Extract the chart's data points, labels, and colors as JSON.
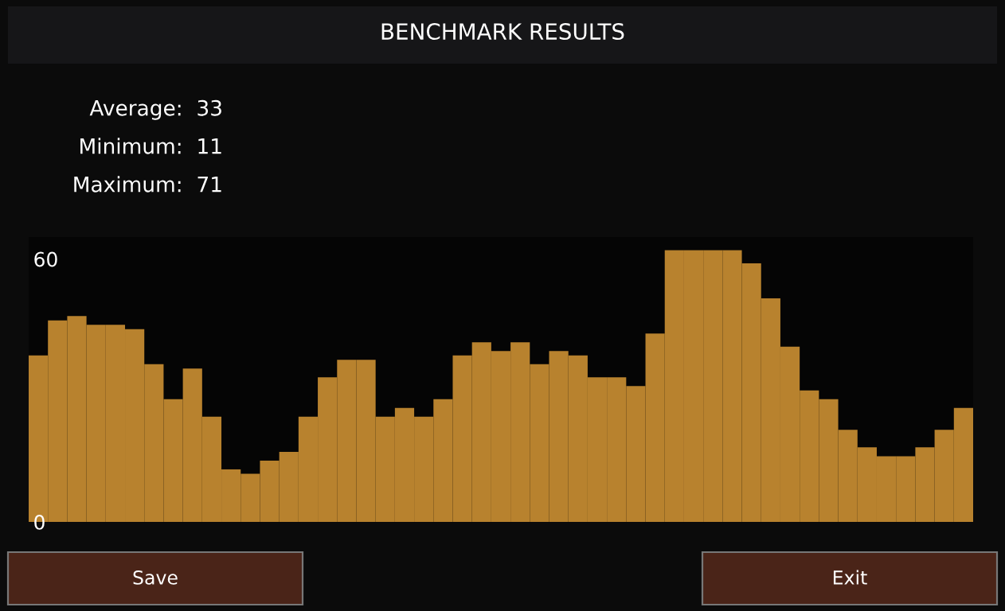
{
  "chart_data": {
    "type": "bar",
    "title": "BENCHMARK RESULTS",
    "categories": [
      null,
      null,
      null,
      null,
      null,
      null,
      null,
      null,
      null,
      null,
      null,
      null,
      null,
      null,
      null,
      null,
      null,
      null,
      null,
      null,
      null,
      null,
      null,
      null,
      null,
      null,
      null,
      null,
      null,
      null,
      null,
      null,
      null,
      null,
      null,
      null,
      null,
      null,
      null,
      null,
      null,
      null,
      null,
      null,
      null,
      null,
      null,
      null,
      null
    ],
    "values": [
      38,
      46,
      47,
      45,
      45,
      44,
      36,
      28,
      35,
      24,
      12,
      11,
      14,
      16,
      24,
      33,
      37,
      37,
      24,
      26,
      24,
      28,
      38,
      41,
      39,
      41,
      36,
      39,
      38,
      33,
      33,
      31,
      43,
      62,
      62,
      62,
      62,
      59,
      51,
      40,
      30,
      28,
      21,
      17,
      15,
      15,
      17,
      21,
      26
    ],
    "color": "#b8822e",
    "ylim": [
      0,
      65
    ],
    "yticks": [
      0,
      60
    ],
    "grid": false,
    "tick_labels": "y",
    "annotations": [
      "Average:  33",
      "Minimum:  11",
      "Maximum:  71",
      "Save",
      "Exit"
    ]
  }
}
